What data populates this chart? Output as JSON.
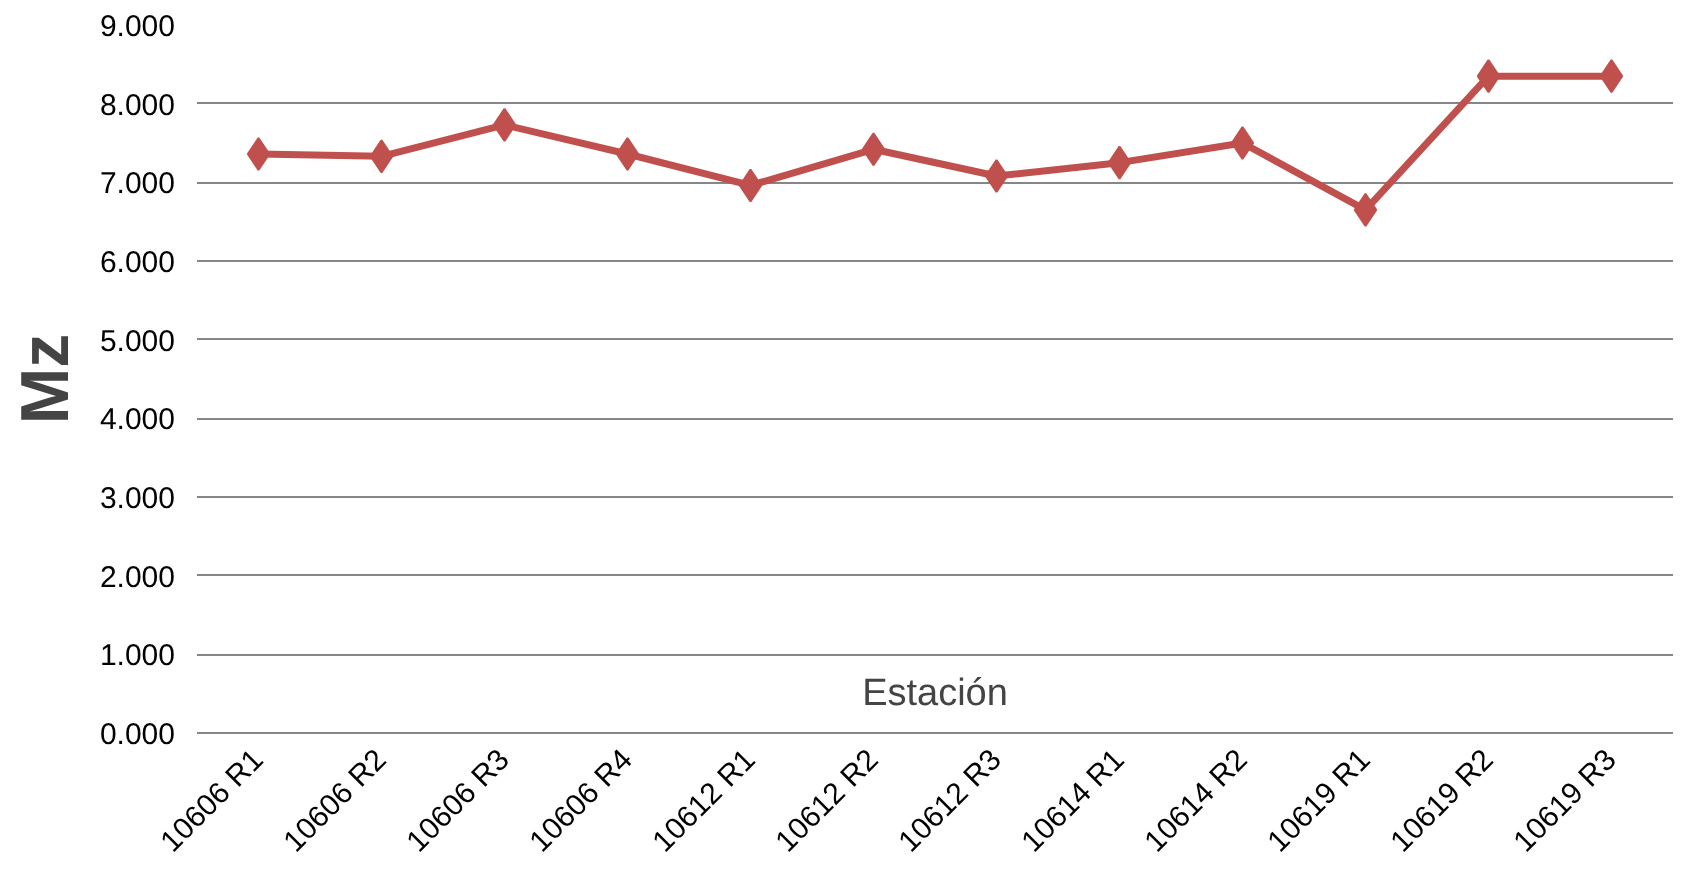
{
  "chart_data": {
    "type": "line",
    "xlabel": "Estación",
    "ylabel": "Mz",
    "categories": [
      "10606 R1",
      "10606 R2",
      "10606 R3",
      "10606 R4",
      "10612 R1",
      "10612 R2",
      "10612 R3",
      "10614 R1",
      "10614 R2",
      "10619 R1",
      "10619 R2",
      "10619 R3"
    ],
    "series": [
      {
        "color": "#c0504d",
        "values": [
          7.36,
          7.33,
          7.73,
          7.36,
          6.96,
          7.42,
          7.08,
          7.25,
          7.5,
          6.65,
          8.35,
          8.35
        ]
      }
    ],
    "ylim": [
      0,
      9
    ],
    "yticks": [
      {
        "value": 0,
        "label": "0.000"
      },
      {
        "value": 1,
        "label": "1.000"
      },
      {
        "value": 2,
        "label": "2.000"
      },
      {
        "value": 3,
        "label": "3.000"
      },
      {
        "value": 4,
        "label": "4.000"
      },
      {
        "value": 5,
        "label": "5.000"
      },
      {
        "value": 6,
        "label": "6.000"
      },
      {
        "value": 7,
        "label": "7.000"
      },
      {
        "value": 8,
        "label": "8.000"
      },
      {
        "value": 9,
        "label": "9.000"
      }
    ],
    "grid": "y",
    "marker": "diamond",
    "line_style": "solid"
  }
}
